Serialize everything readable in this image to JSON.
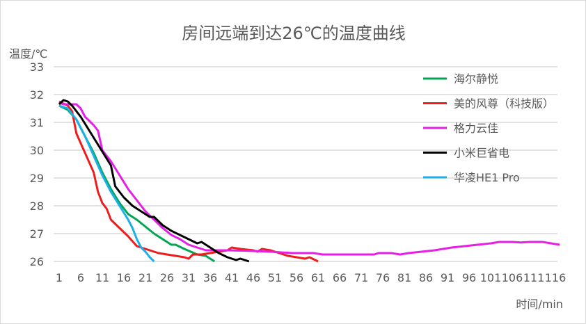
{
  "chart_data": {
    "type": "line",
    "title": "房间远端到达26℃的温度曲线",
    "ylabel": "温度/℃",
    "xlabel": "时间/min",
    "ylim": [
      26,
      33
    ],
    "xlim": [
      1,
      117
    ],
    "yticks": [
      "26",
      "27",
      "28",
      "29",
      "30",
      "31",
      "32",
      "33"
    ],
    "xticks": [
      "1",
      "6",
      "11",
      "16",
      "21",
      "26",
      "31",
      "36",
      "41",
      "46",
      "51",
      "56",
      "61",
      "66",
      "71",
      "76",
      "81",
      "86",
      "91",
      "96",
      "101",
      "106",
      "111",
      "116"
    ],
    "grid": true,
    "legend_position": "right",
    "series": [
      {
        "name": "海尔静悦",
        "color": "#00a651",
        "x": [
          1,
          3,
          5,
          7,
          9,
          11,
          13,
          15,
          17,
          19,
          21,
          23,
          25,
          27,
          28,
          30,
          33,
          35,
          36,
          37
        ],
        "y": [
          31.6,
          31.45,
          31.1,
          30.5,
          29.9,
          29.2,
          28.6,
          28.1,
          27.7,
          27.5,
          27.25,
          27.0,
          26.8,
          26.6,
          26.6,
          26.45,
          26.25,
          26.2,
          26.1,
          26.0
        ]
      },
      {
        "name": "美的风尊（科技版）",
        "color": "#ee1c1c",
        "x": [
          1,
          3,
          4,
          5,
          7,
          9,
          10,
          11,
          12,
          13,
          15,
          17,
          19,
          20,
          22,
          24,
          26,
          28,
          30,
          31,
          32,
          34,
          36,
          38,
          40,
          41,
          43,
          46,
          47,
          48,
          50,
          52,
          54,
          56,
          58,
          59,
          61
        ],
        "y": [
          31.75,
          31.6,
          31.4,
          30.6,
          29.9,
          29.2,
          28.5,
          28.1,
          27.9,
          27.5,
          27.2,
          26.9,
          26.55,
          26.5,
          26.4,
          26.3,
          26.25,
          26.2,
          26.15,
          26.1,
          26.25,
          26.25,
          26.3,
          26.35,
          26.4,
          26.5,
          26.45,
          26.4,
          26.35,
          26.45,
          26.4,
          26.3,
          26.2,
          26.15,
          26.1,
          26.15,
          26.0
        ]
      },
      {
        "name": "格力云佳",
        "color": "#e61ee6",
        "x": [
          1,
          2,
          5,
          6,
          7,
          9,
          10,
          11,
          13,
          15,
          17,
          19,
          21,
          23,
          25,
          27,
          29,
          31,
          33,
          35,
          40,
          45,
          50,
          55,
          60,
          62,
          65,
          70,
          74,
          75,
          78,
          80,
          82,
          85,
          88,
          90,
          92,
          95,
          98,
          101,
          103,
          106,
          108,
          110,
          113,
          115,
          117
        ],
        "y": [
          31.7,
          31.65,
          31.65,
          31.5,
          31.2,
          30.9,
          30.7,
          30.0,
          29.6,
          29.1,
          28.6,
          28.2,
          27.8,
          27.5,
          27.2,
          26.95,
          26.8,
          26.6,
          26.5,
          26.4,
          26.4,
          26.38,
          26.35,
          26.3,
          26.3,
          26.25,
          26.25,
          26.25,
          26.25,
          26.3,
          26.3,
          26.25,
          26.3,
          26.35,
          26.4,
          26.45,
          26.5,
          26.55,
          26.6,
          26.65,
          26.7,
          26.7,
          26.68,
          26.7,
          26.7,
          26.65,
          26.6
        ]
      },
      {
        "name": "小米巨省电",
        "color": "#000000",
        "x": [
          1,
          2,
          3,
          4,
          6,
          8,
          10,
          12,
          13,
          14,
          16,
          18,
          20,
          22,
          23,
          25,
          27,
          29,
          31,
          33,
          34,
          36,
          38,
          40,
          42,
          43,
          45
        ],
        "y": [
          31.65,
          31.8,
          31.75,
          31.6,
          31.2,
          30.7,
          30.2,
          29.7,
          29.45,
          28.7,
          28.3,
          28.0,
          27.8,
          27.6,
          27.6,
          27.3,
          27.1,
          26.95,
          26.8,
          26.65,
          26.7,
          26.5,
          26.3,
          26.15,
          26.05,
          26.1,
          26.0
        ]
      },
      {
        "name": "华凌HE1 Pro",
        "color": "#1cb0e8",
        "x": [
          1,
          3,
          5,
          7,
          9,
          11,
          13,
          15,
          17,
          18,
          19,
          20,
          21,
          22,
          23
        ],
        "y": [
          31.6,
          31.5,
          31.1,
          30.5,
          29.8,
          29.1,
          28.5,
          28.0,
          27.5,
          27.2,
          26.8,
          26.5,
          26.35,
          26.15,
          26.0
        ]
      }
    ]
  }
}
